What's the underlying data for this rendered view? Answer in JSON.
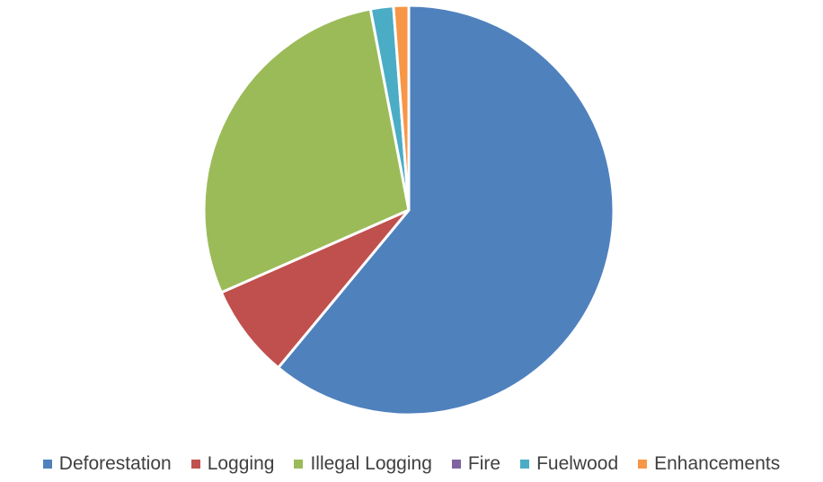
{
  "chart_data": {
    "type": "pie",
    "title": "",
    "categories": [
      "Deforestation",
      "Logging",
      "Illegal Logging",
      "Fire",
      "Fuelwood",
      "Enhancements"
    ],
    "values": [
      61.0,
      7.4,
      28.6,
      0.0,
      1.8,
      1.2
    ],
    "unit": "percent of total (estimated)",
    "colors": [
      "#4F81BD",
      "#C0504D",
      "#9BBB59",
      "#8064A2",
      "#4BACC6",
      "#F79646"
    ],
    "legend_position": "bottom",
    "start_angle": "12 o'clock, clockwise"
  }
}
